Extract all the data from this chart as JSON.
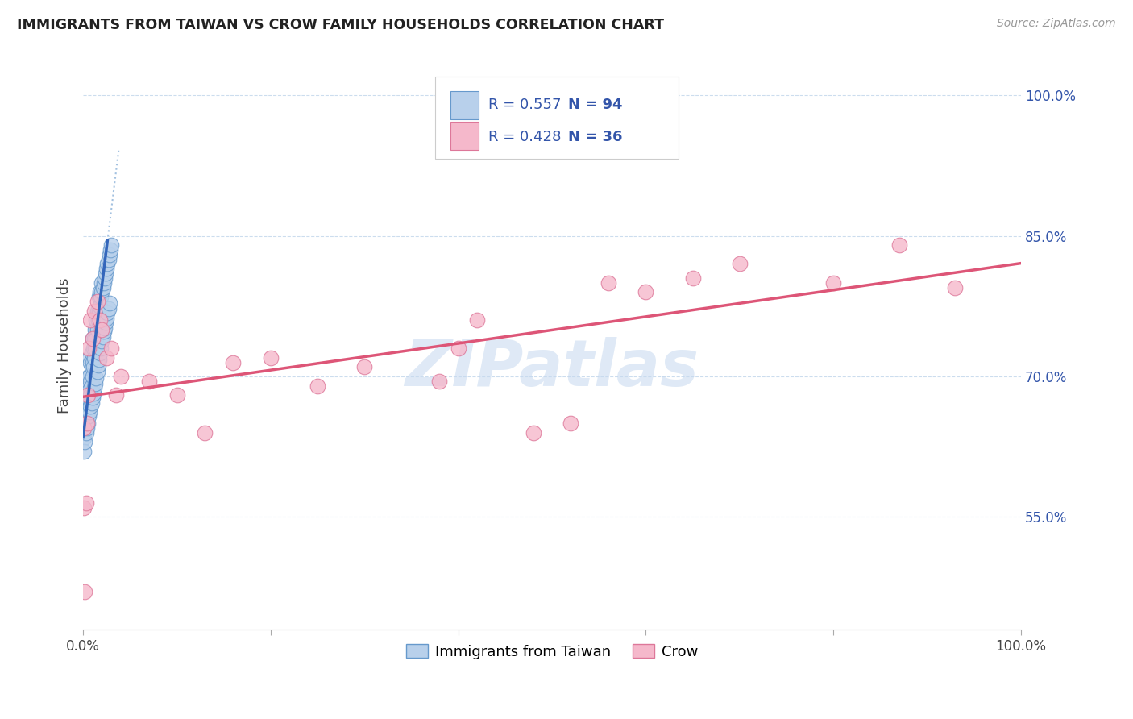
{
  "title": "IMMIGRANTS FROM TAIWAN VS CROW FAMILY HOUSEHOLDS CORRELATION CHART",
  "source": "Source: ZipAtlas.com",
  "ylabel": "Family Households",
  "series1_name": "Immigrants from Taiwan",
  "series2_name": "Crow",
  "series1_color": "#b8d0eb",
  "series2_color": "#f5b8cb",
  "series1_edge_color": "#6699cc",
  "series2_edge_color": "#dd7799",
  "series1_line_color": "#3366bb",
  "series2_line_color": "#dd5577",
  "ref_line_color": "#99aabb",
  "R1": 0.557,
  "N1": 94,
  "R2": 0.428,
  "N2": 36,
  "legend_color": "#3355aa",
  "xmin": 0.0,
  "xmax": 1.0,
  "ymin": 0.43,
  "ymax": 1.035,
  "yticks": [
    0.55,
    0.7,
    0.85,
    1.0
  ],
  "ytick_labels": [
    "55.0%",
    "70.0%",
    "85.0%",
    "100.0%"
  ],
  "watermark": "ZIPatlas",
  "blue_x": [
    0.001,
    0.001,
    0.001,
    0.002,
    0.002,
    0.002,
    0.002,
    0.002,
    0.003,
    0.003,
    0.003,
    0.003,
    0.003,
    0.004,
    0.004,
    0.004,
    0.004,
    0.005,
    0.005,
    0.005,
    0.005,
    0.006,
    0.006,
    0.006,
    0.006,
    0.007,
    0.007,
    0.007,
    0.007,
    0.008,
    0.008,
    0.008,
    0.009,
    0.009,
    0.009,
    0.01,
    0.01,
    0.01,
    0.011,
    0.011,
    0.012,
    0.012,
    0.013,
    0.013,
    0.014,
    0.014,
    0.015,
    0.015,
    0.016,
    0.017,
    0.017,
    0.018,
    0.018,
    0.019,
    0.02,
    0.02,
    0.021,
    0.022,
    0.023,
    0.024,
    0.025,
    0.026,
    0.027,
    0.028,
    0.029,
    0.03,
    0.001,
    0.002,
    0.003,
    0.004,
    0.005,
    0.006,
    0.007,
    0.008,
    0.009,
    0.01,
    0.011,
    0.012,
    0.013,
    0.014,
    0.015,
    0.016,
    0.017,
    0.018,
    0.019,
    0.02,
    0.021,
    0.022,
    0.023,
    0.024,
    0.025,
    0.026,
    0.027,
    0.028
  ],
  "blue_y": [
    0.635,
    0.65,
    0.66,
    0.645,
    0.655,
    0.665,
    0.675,
    0.685,
    0.65,
    0.66,
    0.67,
    0.68,
    0.69,
    0.66,
    0.67,
    0.68,
    0.695,
    0.665,
    0.675,
    0.685,
    0.695,
    0.67,
    0.68,
    0.69,
    0.7,
    0.675,
    0.685,
    0.7,
    0.72,
    0.68,
    0.695,
    0.715,
    0.69,
    0.71,
    0.725,
    0.7,
    0.715,
    0.74,
    0.71,
    0.73,
    0.72,
    0.74,
    0.73,
    0.75,
    0.74,
    0.76,
    0.75,
    0.77,
    0.76,
    0.77,
    0.785,
    0.775,
    0.79,
    0.785,
    0.79,
    0.8,
    0.795,
    0.8,
    0.805,
    0.81,
    0.815,
    0.82,
    0.825,
    0.83,
    0.835,
    0.84,
    0.62,
    0.63,
    0.64,
    0.645,
    0.65,
    0.658,
    0.662,
    0.668,
    0.672,
    0.678,
    0.682,
    0.688,
    0.692,
    0.698,
    0.705,
    0.712,
    0.718,
    0.725,
    0.73,
    0.738,
    0.742,
    0.748,
    0.752,
    0.758,
    0.762,
    0.768,
    0.772,
    0.778
  ],
  "pink_x": [
    0.001,
    0.001,
    0.002,
    0.003,
    0.004,
    0.005,
    0.006,
    0.008,
    0.01,
    0.012,
    0.015,
    0.018,
    0.02,
    0.025,
    0.03,
    0.035,
    0.04,
    0.07,
    0.1,
    0.13,
    0.16,
    0.2,
    0.25,
    0.3,
    0.38,
    0.4,
    0.42,
    0.48,
    0.52,
    0.56,
    0.6,
    0.65,
    0.7,
    0.8,
    0.87,
    0.93
  ],
  "pink_y": [
    0.645,
    0.56,
    0.47,
    0.565,
    0.65,
    0.68,
    0.73,
    0.76,
    0.74,
    0.77,
    0.78,
    0.76,
    0.75,
    0.72,
    0.73,
    0.68,
    0.7,
    0.695,
    0.68,
    0.64,
    0.715,
    0.72,
    0.69,
    0.71,
    0.695,
    0.73,
    0.76,
    0.64,
    0.65,
    0.8,
    0.79,
    0.805,
    0.82,
    0.8,
    0.84,
    0.795
  ]
}
